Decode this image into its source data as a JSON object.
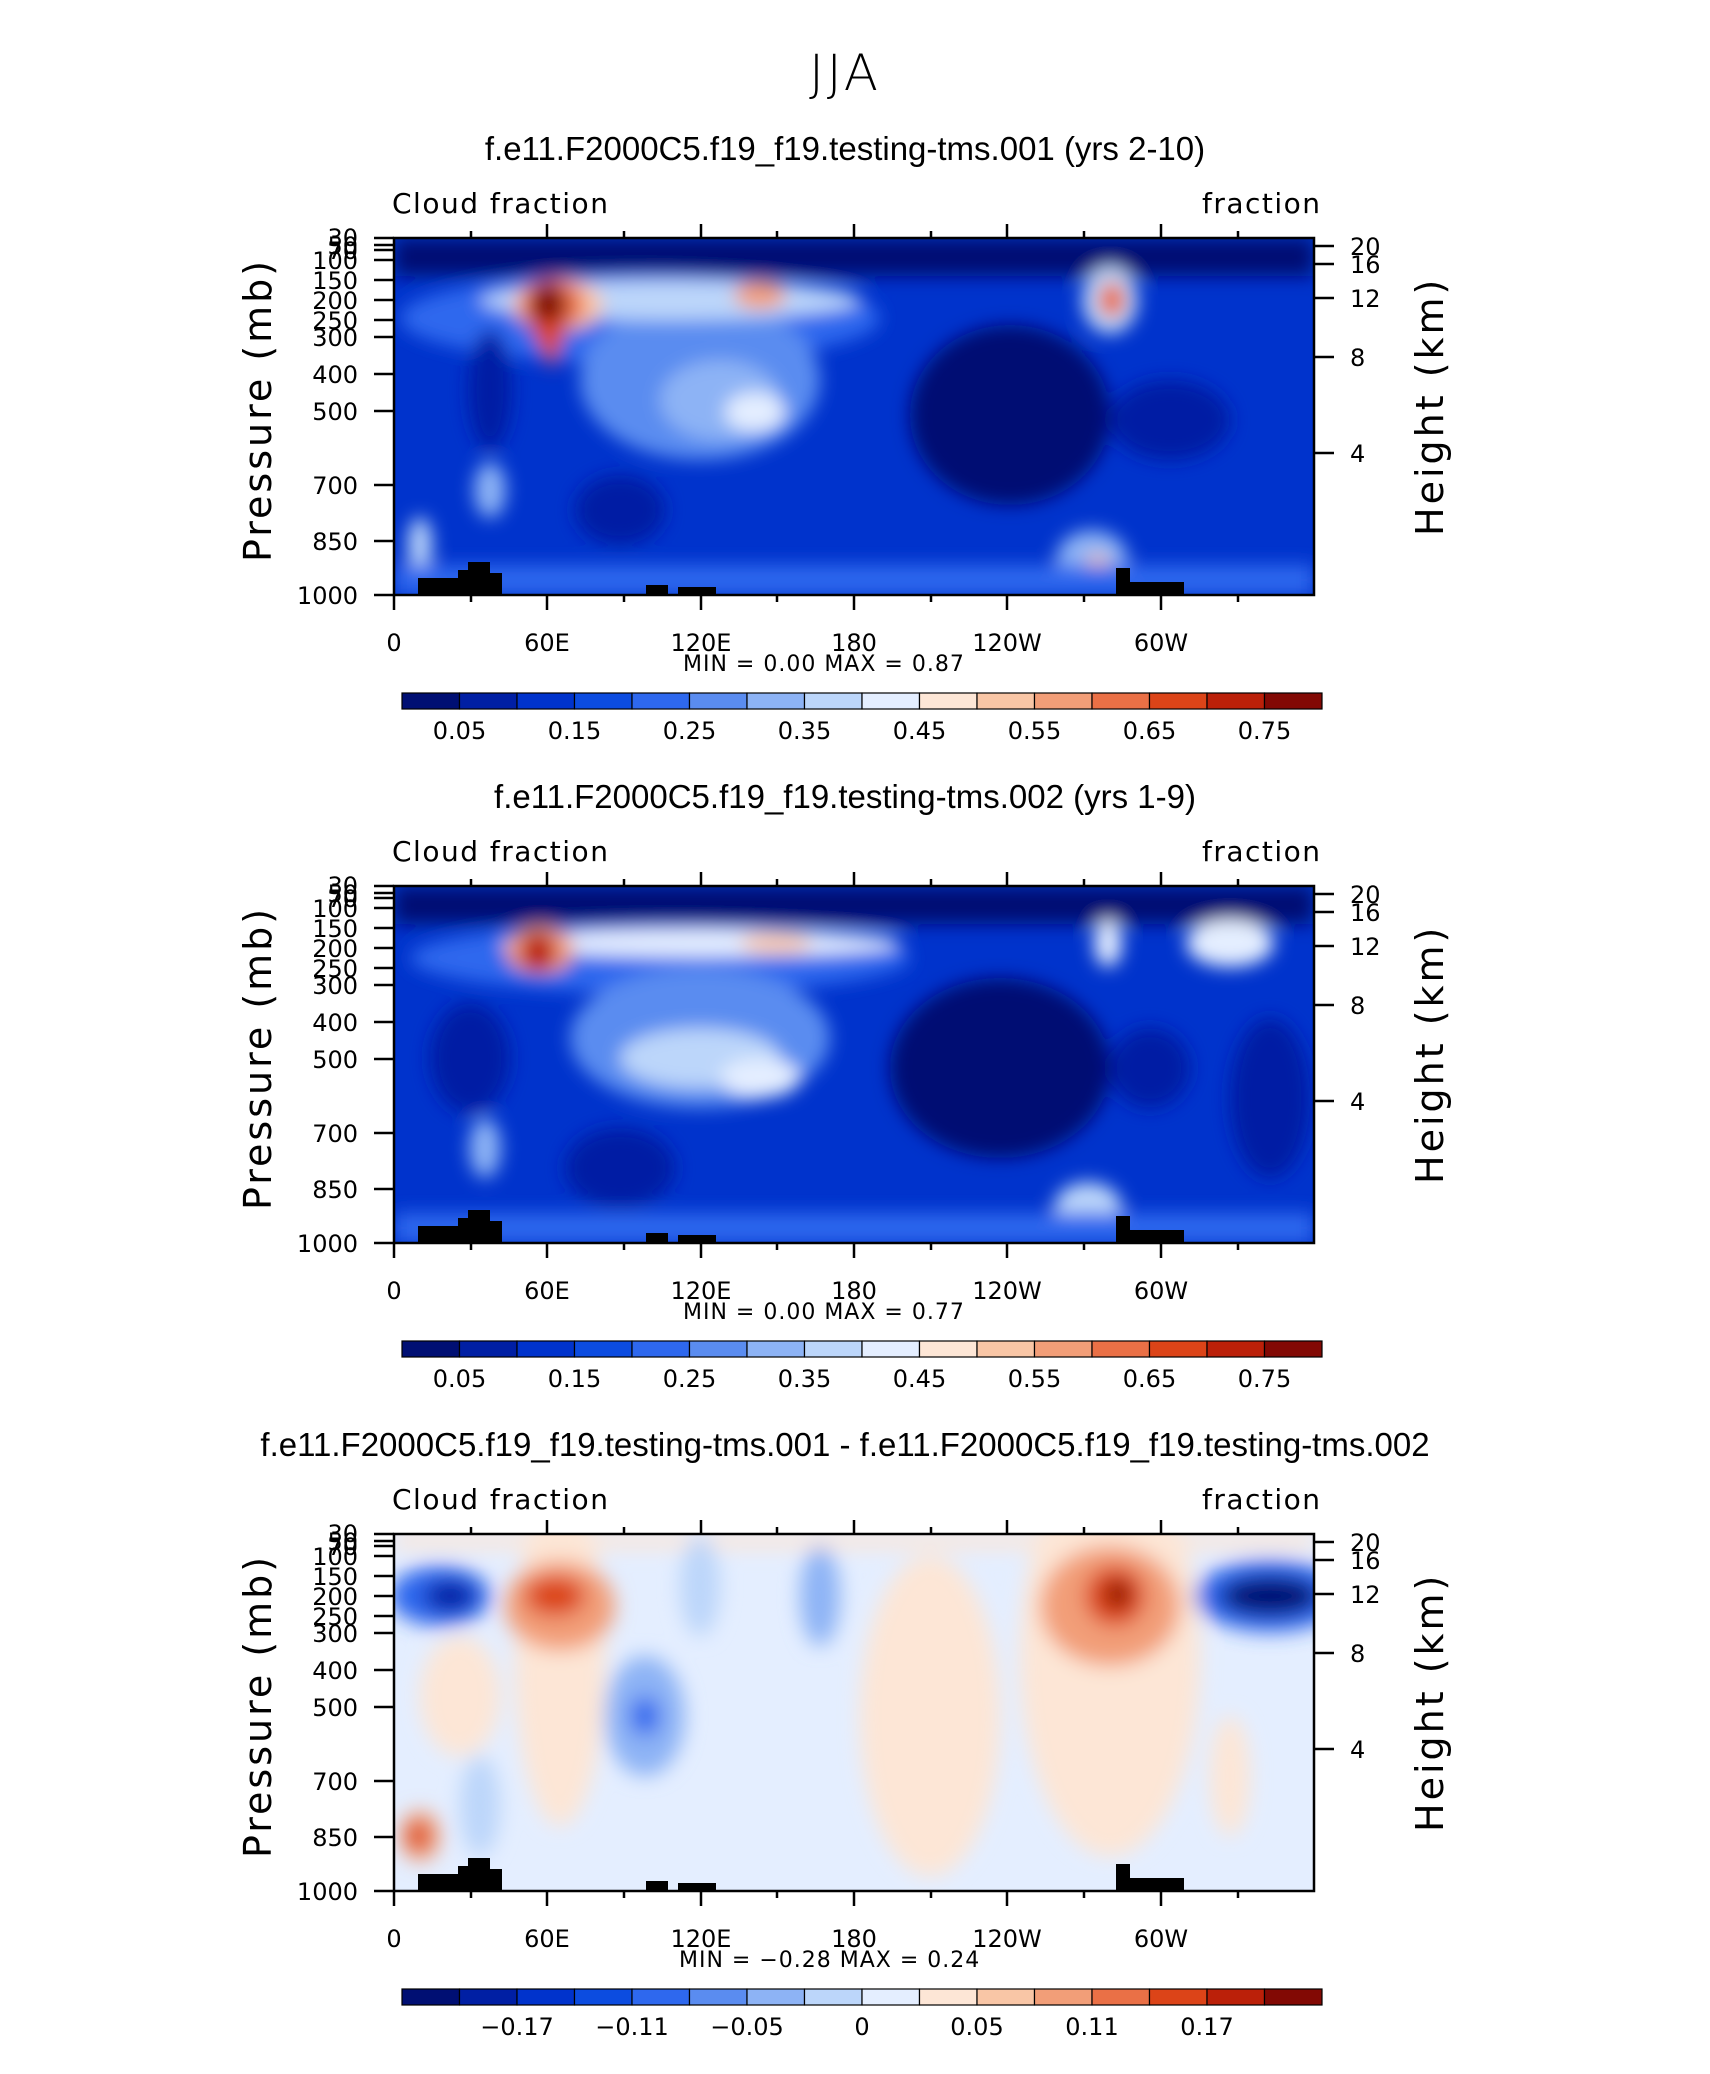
{
  "page_title": "JJA",
  "panels": [
    {
      "title": "f.e11.F2000C5.f19_f19.testing-tms.001 (yrs 2-10)",
      "left_header": "Cloud fraction",
      "right_header": "fraction",
      "ylabel_left": "Pressure (mb)",
      "ylabel_right": "Height (km)",
      "stats": "MIN =      0.00   MAX =      0.87",
      "colorbar_labels": [
        "0.05",
        "0.15",
        "0.25",
        "0.35",
        "0.45",
        "0.55",
        "0.65",
        "0.75"
      ]
    },
    {
      "title": "f.e11.F2000C5.f19_f19.testing-tms.002 (yrs 1-9)",
      "left_header": "Cloud fraction",
      "right_header": "fraction",
      "ylabel_left": "Pressure (mb)",
      "ylabel_right": "Height (km)",
      "stats": "MIN =      0.00   MAX =      0.77",
      "colorbar_labels": [
        "0.05",
        "0.15",
        "0.25",
        "0.35",
        "0.45",
        "0.55",
        "0.65",
        "0.75"
      ]
    },
    {
      "title": "f.e11.F2000C5.f19_f19.testing-tms.001 - f.e11.F2000C5.f19_f19.testing-tms.002",
      "left_header": "Cloud fraction",
      "right_header": "fraction",
      "ylabel_left": "Pressure (mb)",
      "ylabel_right": "Height (km)",
      "stats": "MIN =    −0.28   MAX =      0.24",
      "colorbar_labels": [
        "−0.17",
        "−0.11",
        "−0.05",
        "0",
        "0.05",
        "0.11",
        "0.17"
      ]
    }
  ],
  "colors": {
    "colorbar_16": [
      "#000f73",
      "#001fa4",
      "#0033cc",
      "#0c4ce0",
      "#2e68ee",
      "#5a8cf0",
      "#8db3f5",
      "#bcd6fa",
      "#e4eeff",
      "#fde6d6",
      "#f9c6a6",
      "#f29e78",
      "#ea7046",
      "#dc4418",
      "#bb2009",
      "#820904"
    ],
    "land_mask": "#000000"
  },
  "chart_data": [
    {
      "type": "heatmap",
      "title": "f.e11.F2000C5.f19_f19.testing-tms.001 (yrs 2-10)",
      "variable": "Cloud fraction",
      "units": "fraction",
      "xlabel": "",
      "ylabel": "Pressure (mb)",
      "ylabel_right": "Height (km)",
      "x_ticks": [
        "0",
        "60E",
        "120E",
        "180",
        "120W",
        "60W"
      ],
      "y_ticks": [
        "30",
        "50",
        "70",
        "100",
        "150",
        "200",
        "250",
        "300",
        "400",
        "500",
        "700",
        "850",
        "1000"
      ],
      "y_ticks_right": [
        "20",
        "16",
        "12",
        "8",
        "4"
      ],
      "xlim": [
        0,
        360
      ],
      "ylim": [
        1000,
        30
      ],
      "y_scale": "log",
      "min": 0.0,
      "max": 0.87,
      "colorbar": [
        "0.05",
        "0.15",
        "0.25",
        "0.35",
        "0.45",
        "0.55",
        "0.65",
        "0.75"
      ]
    },
    {
      "type": "heatmap",
      "title": "f.e11.F2000C5.f19_f19.testing-tms.002 (yrs 1-9)",
      "variable": "Cloud fraction",
      "units": "fraction",
      "xlabel": "",
      "ylabel": "Pressure (mb)",
      "ylabel_right": "Height (km)",
      "x_ticks": [
        "0",
        "60E",
        "120E",
        "180",
        "120W",
        "60W"
      ],
      "y_ticks": [
        "30",
        "50",
        "70",
        "100",
        "150",
        "200",
        "250",
        "300",
        "400",
        "500",
        "700",
        "850",
        "1000"
      ],
      "y_ticks_right": [
        "20",
        "16",
        "12",
        "8",
        "4"
      ],
      "xlim": [
        0,
        360
      ],
      "ylim": [
        1000,
        30
      ],
      "y_scale": "log",
      "min": 0.0,
      "max": 0.77,
      "colorbar": [
        "0.05",
        "0.15",
        "0.25",
        "0.35",
        "0.45",
        "0.55",
        "0.65",
        "0.75"
      ]
    },
    {
      "type": "heatmap",
      "title": "f.e11.F2000C5.f19_f19.testing-tms.001 - f.e11.F2000C5.f19_f19.testing-tms.002",
      "variable": "Cloud fraction",
      "units": "fraction",
      "xlabel": "",
      "ylabel": "Pressure (mb)",
      "ylabel_right": "Height (km)",
      "x_ticks": [
        "0",
        "60E",
        "120E",
        "180",
        "120W",
        "60W"
      ],
      "y_ticks": [
        "30",
        "50",
        "70",
        "100",
        "150",
        "200",
        "250",
        "300",
        "400",
        "500",
        "700",
        "850",
        "1000"
      ],
      "y_ticks_right": [
        "20",
        "16",
        "12",
        "8",
        "4"
      ],
      "xlim": [
        0,
        360
      ],
      "ylim": [
        1000,
        30
      ],
      "y_scale": "log",
      "min": -0.28,
      "max": 0.24,
      "colorbar": [
        "−0.17",
        "−0.11",
        "−0.05",
        "0",
        "0.05",
        "0.11",
        "0.17"
      ]
    }
  ]
}
